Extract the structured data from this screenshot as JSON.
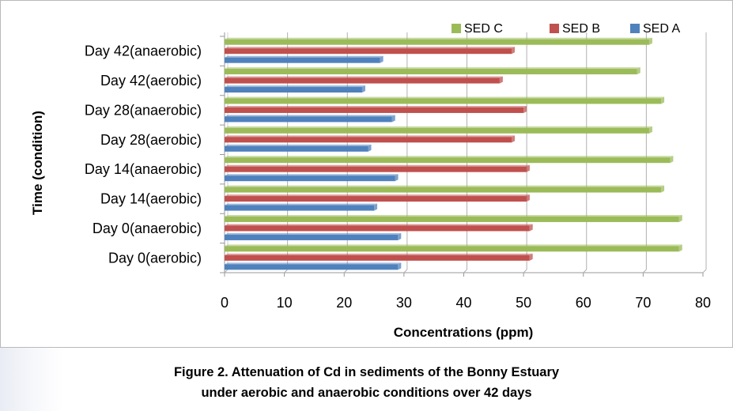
{
  "chart_data": {
    "type": "bar",
    "orientation": "horizontal",
    "categories": [
      "Day 0(aerobic)",
      "Day 0(anaerobic)",
      "Day 14(aerobic)",
      "Day 14(anaerobic)",
      "Day 28(aerobic)",
      "Day 28(anaerobic)",
      "Day 42(aerobic)",
      "Day 42(anaerobic)"
    ],
    "series": [
      {
        "name": "SED A",
        "color": "#4f81bd",
        "values": [
          29,
          29,
          25,
          28.5,
          24,
          28,
          23,
          26
        ]
      },
      {
        "name": "SED B",
        "color": "#c0504d",
        "values": [
          51,
          51,
          50.5,
          50.5,
          48,
          50,
          46,
          48
        ]
      },
      {
        "name": "SED C",
        "color": "#9bbb59",
        "values": [
          76,
          76,
          73,
          74.5,
          71,
          73,
          69,
          71
        ]
      }
    ],
    "xlabel": "Concentrations (ppm)",
    "ylabel": "Time (condition)",
    "xlim": [
      0,
      80
    ],
    "xticks": [
      "0",
      "10",
      "20",
      "30",
      "40",
      "50",
      "60",
      "70",
      "80"
    ],
    "grid": "vertical",
    "legend_position": "top-right"
  },
  "caption": {
    "line1": "Figure 2. Attenuation of Cd in sediments of the Bonny Estuary",
    "line2": "under aerobic and anaerobic conditions over 42 days"
  }
}
